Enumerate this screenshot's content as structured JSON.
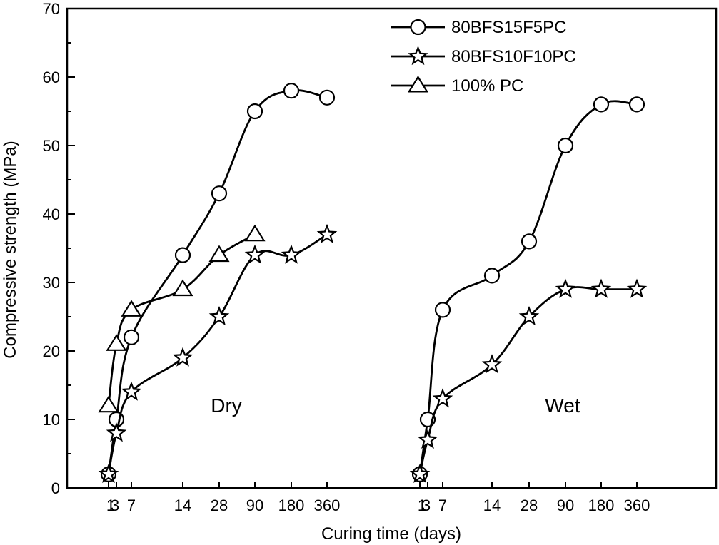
{
  "chart_data": {
    "type": "line",
    "xlabel": "Curing time (days)",
    "ylabel": "Compressive strength (MPa)",
    "ylim": [
      0,
      70
    ],
    "yticks": [
      0,
      10,
      20,
      30,
      40,
      50,
      60,
      70
    ],
    "legend_position": "top-right",
    "panels": [
      {
        "label": "Dry",
        "x_ticks": [
          "1",
          "3",
          "7",
          "14",
          "28",
          "90",
          "180",
          "360"
        ],
        "series": [
          {
            "name": "80BFS15F5PC",
            "marker": "circle",
            "x": [
              "1",
              "3",
              "7",
              "14",
              "28",
              "90",
              "180",
              "360"
            ],
            "values": [
              2,
              10,
              22,
              34,
              43,
              55,
              58,
              57
            ]
          },
          {
            "name": "80BFS10F10PC",
            "marker": "star",
            "x": [
              "1",
              "3",
              "7",
              "14",
              "28",
              "90",
              "180",
              "360"
            ],
            "values": [
              2,
              8,
              14,
              19,
              25,
              34,
              34,
              37
            ]
          },
          {
            "name": "100% PC",
            "marker": "triangle",
            "x": [
              "1",
              "3",
              "7",
              "14",
              "28",
              "90"
            ],
            "values": [
              12,
              21,
              26,
              29,
              34,
              37
            ]
          }
        ]
      },
      {
        "label": "Wet",
        "x_ticks": [
          "1",
          "3",
          "7",
          "14",
          "28",
          "90",
          "180",
          "360"
        ],
        "series": [
          {
            "name": "80BFS15F5PC",
            "marker": "circle",
            "x": [
              "1",
              "3",
              "7",
              "14",
              "28",
              "90",
              "180",
              "360"
            ],
            "values": [
              2,
              10,
              26,
              31,
              36,
              50,
              56,
              56
            ]
          },
          {
            "name": "80BFS10F10PC",
            "marker": "star",
            "x": [
              "1",
              "3",
              "7",
              "14",
              "28",
              "90",
              "180",
              "360"
            ],
            "values": [
              2,
              7,
              13,
              18,
              25,
              29,
              29,
              29
            ]
          }
        ]
      }
    ],
    "legend": [
      {
        "name": "80BFS15F5PC",
        "marker": "circle"
      },
      {
        "name": "80BFS10F10PC",
        "marker": "star"
      },
      {
        "name": "100% PC",
        "marker": "triangle"
      }
    ]
  }
}
